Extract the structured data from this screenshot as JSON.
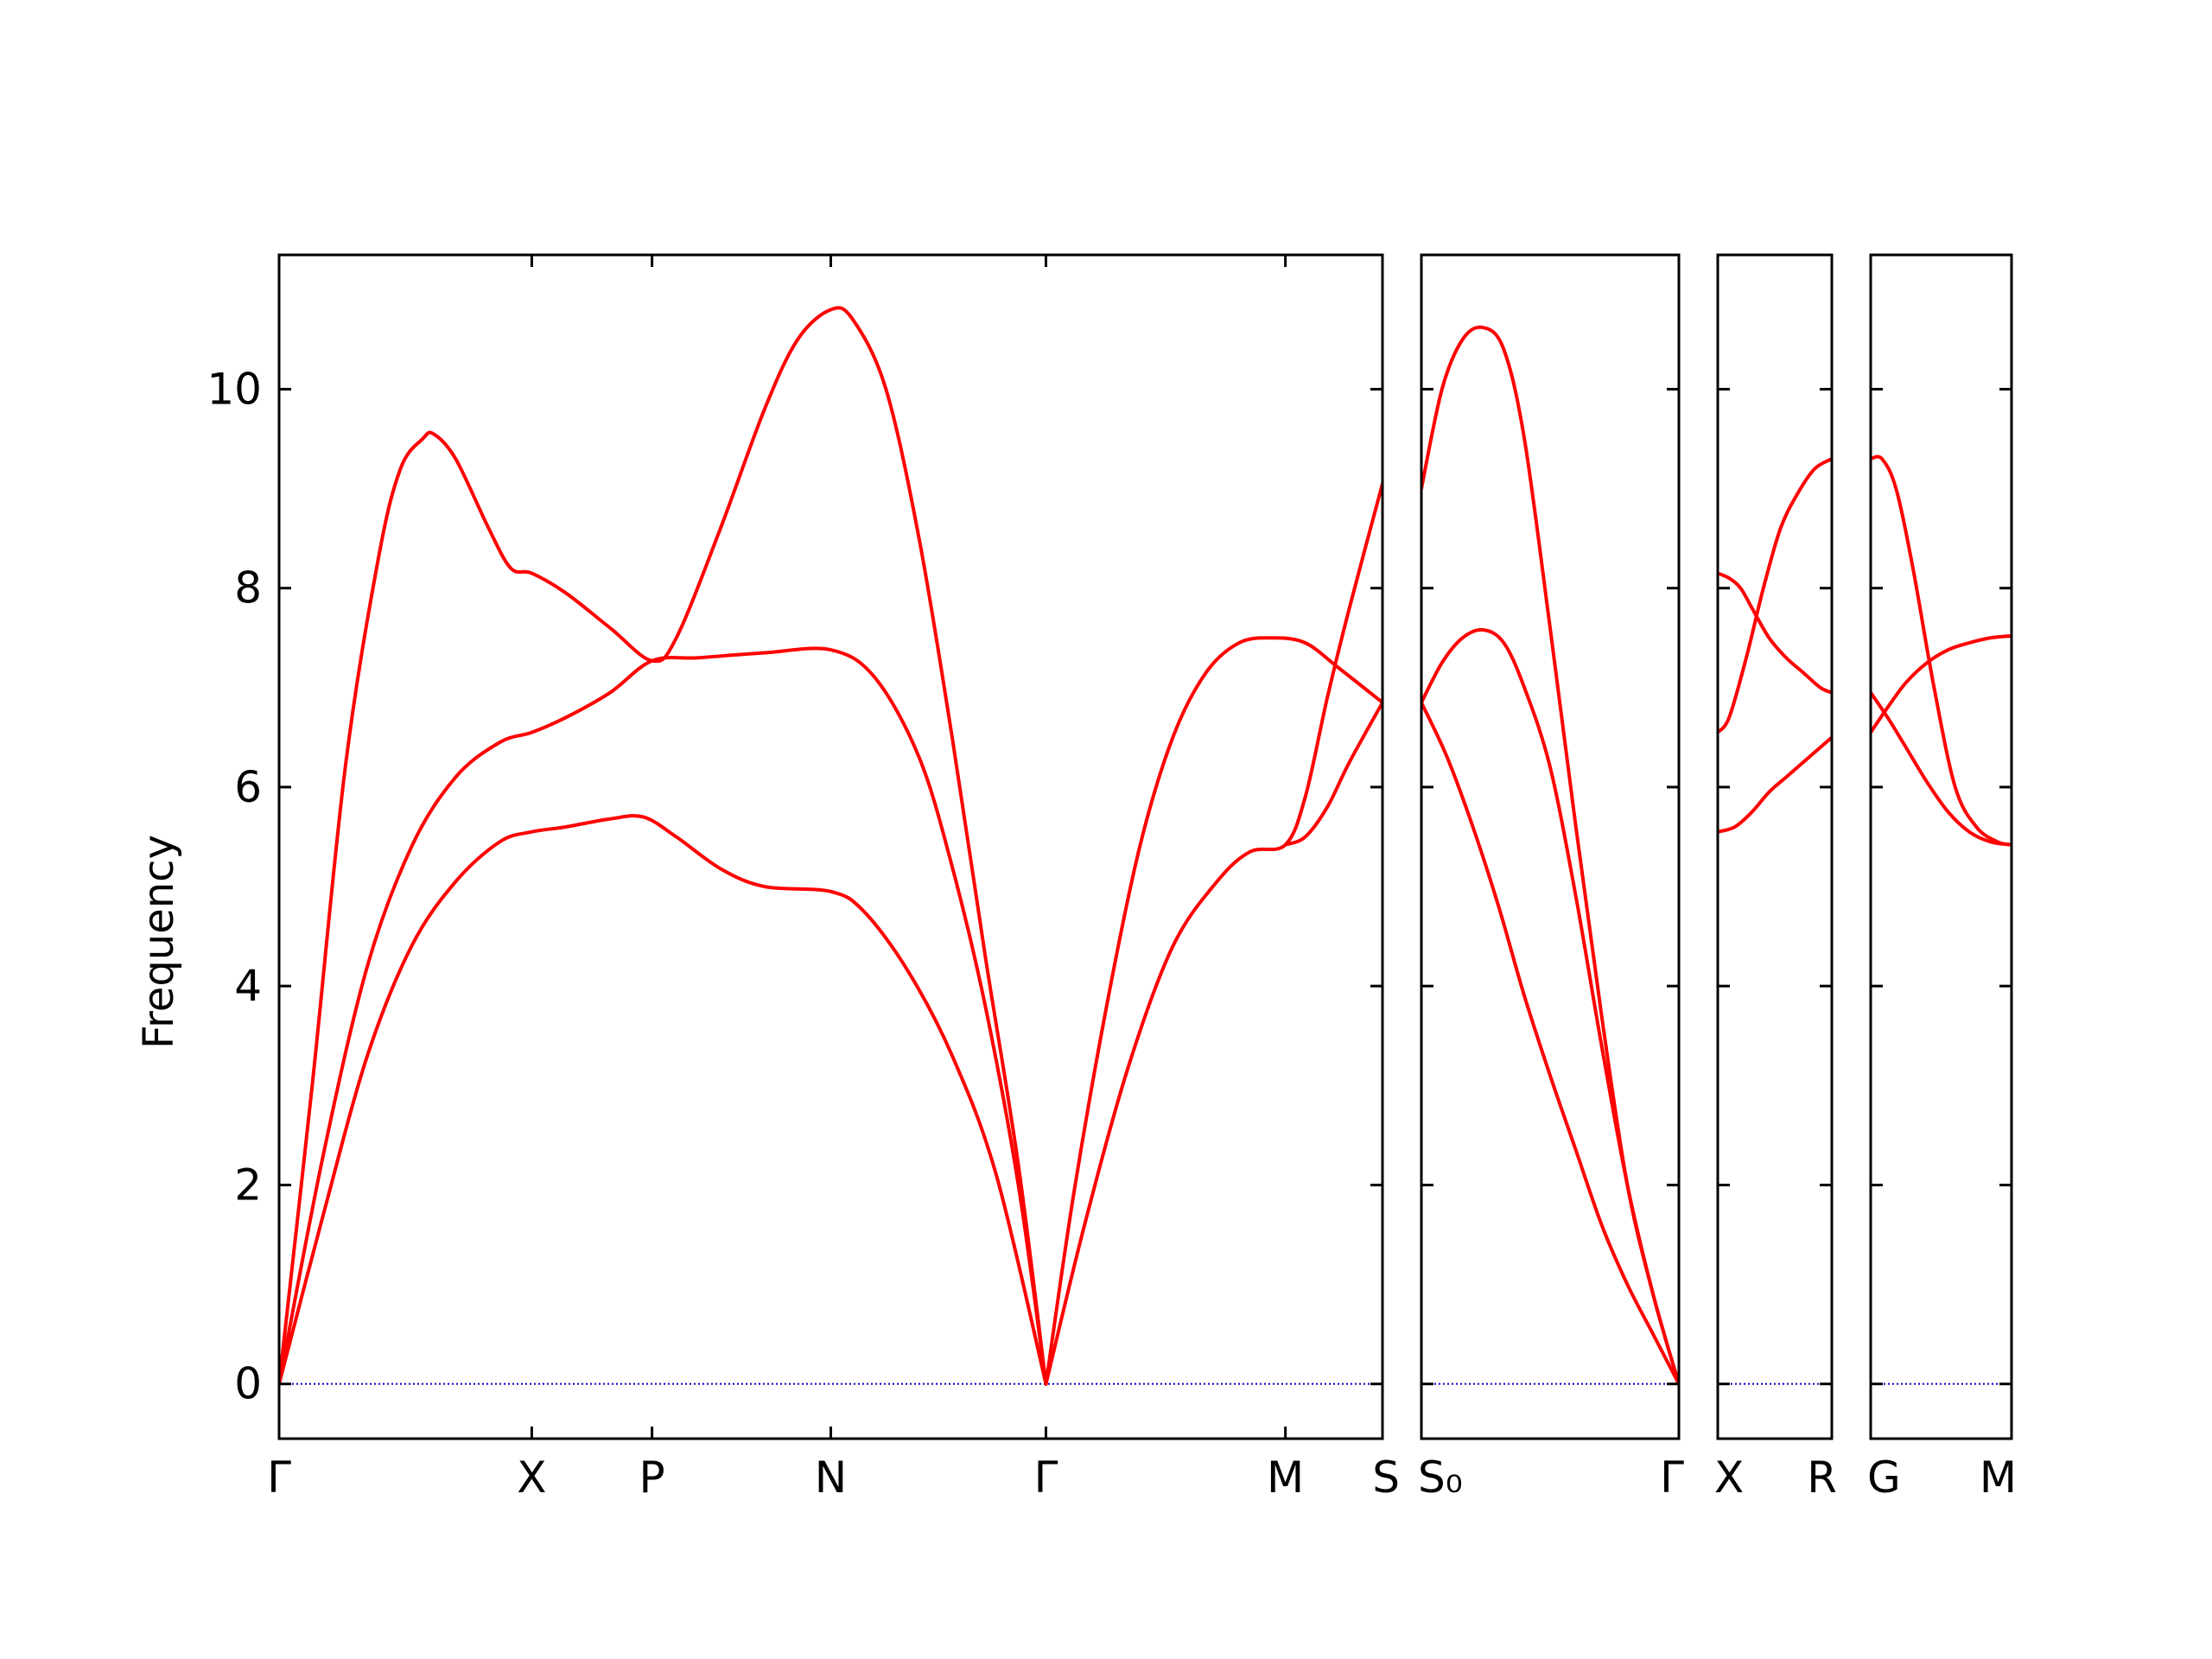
{
  "chart_data": {
    "type": "line",
    "ylabel": "Frequency",
    "ylim": [
      -0.55,
      11.35
    ],
    "yticks": [
      0,
      2,
      4,
      6,
      8,
      10
    ],
    "grid": false,
    "line_color": "#ff0000",
    "zero_line_color": "#0000cc",
    "panels": [
      {
        "name": "panel-1",
        "xticks": [
          {
            "label": "Γ",
            "pos": 0.0
          },
          {
            "label": "X",
            "pos": 0.229
          },
          {
            "label": "P",
            "pos": 0.338
          },
          {
            "label": "N",
            "pos": 0.5
          },
          {
            "label": "Γ",
            "pos": 0.695
          },
          {
            "label": "M",
            "pos": 0.912
          },
          {
            "label": "S",
            "pos": 1.0
          }
        ],
        "series": [
          {
            "points": [
              [
                0.0,
                0.0
              ],
              [
                0.03,
                3.0
              ],
              [
                0.06,
                6.2
              ],
              [
                0.09,
                8.3
              ],
              [
                0.11,
                9.2
              ],
              [
                0.13,
                9.5
              ],
              [
                0.14,
                9.55
              ],
              [
                0.16,
                9.3
              ],
              [
                0.19,
                8.6
              ],
              [
                0.21,
                8.2
              ],
              [
                0.229,
                8.15
              ],
              [
                0.26,
                7.95
              ],
              [
                0.3,
                7.6
              ],
              [
                0.338,
                7.27
              ],
              [
                0.36,
                7.5
              ],
              [
                0.4,
                8.6
              ],
              [
                0.44,
                9.8
              ],
              [
                0.47,
                10.5
              ],
              [
                0.5,
                10.8
              ],
              [
                0.52,
                10.7
              ],
              [
                0.55,
                10.0
              ],
              [
                0.58,
                8.5
              ],
              [
                0.61,
                6.5
              ],
              [
                0.64,
                4.3
              ],
              [
                0.67,
                2.2
              ],
              [
                0.695,
                0.0
              ]
            ]
          },
          {
            "points": [
              [
                0.0,
                0.0
              ],
              [
                0.04,
                2.3
              ],
              [
                0.08,
                4.2
              ],
              [
                0.12,
                5.4
              ],
              [
                0.16,
                6.1
              ],
              [
                0.2,
                6.45
              ],
              [
                0.229,
                6.55
              ],
              [
                0.26,
                6.7
              ],
              [
                0.3,
                6.95
              ],
              [
                0.338,
                7.27
              ],
              [
                0.38,
                7.3
              ],
              [
                0.44,
                7.35
              ],
              [
                0.5,
                7.38
              ],
              [
                0.54,
                7.1
              ],
              [
                0.58,
                6.3
              ],
              [
                0.61,
                5.2
              ],
              [
                0.64,
                3.8
              ],
              [
                0.67,
                2.0
              ],
              [
                0.695,
                0.0
              ]
            ]
          },
          {
            "points": [
              [
                0.0,
                0.0
              ],
              [
                0.04,
                1.7
              ],
              [
                0.08,
                3.3
              ],
              [
                0.12,
                4.4
              ],
              [
                0.16,
                5.05
              ],
              [
                0.2,
                5.45
              ],
              [
                0.229,
                5.55
              ],
              [
                0.26,
                5.6
              ],
              [
                0.3,
                5.68
              ],
              [
                0.33,
                5.7
              ],
              [
                0.36,
                5.5
              ],
              [
                0.4,
                5.18
              ],
              [
                0.44,
                5.0
              ],
              [
                0.5,
                4.95
              ],
              [
                0.53,
                4.75
              ],
              [
                0.57,
                4.15
              ],
              [
                0.61,
                3.3
              ],
              [
                0.65,
                2.1
              ],
              [
                0.695,
                0.0
              ]
            ]
          },
          {
            "points": [
              [
                0.695,
                0.0
              ],
              [
                0.72,
                1.9
              ],
              [
                0.75,
                3.8
              ],
              [
                0.78,
                5.4
              ],
              [
                0.81,
                6.5
              ],
              [
                0.84,
                7.15
              ],
              [
                0.87,
                7.45
              ],
              [
                0.9,
                7.5
              ],
              [
                0.93,
                7.45
              ],
              [
                0.96,
                7.2
              ],
              [
                1.0,
                6.85
              ]
            ]
          },
          {
            "points": [
              [
                0.695,
                0.0
              ],
              [
                0.73,
                1.6
              ],
              [
                0.77,
                3.2
              ],
              [
                0.81,
                4.4
              ],
              [
                0.85,
                5.05
              ],
              [
                0.88,
                5.35
              ],
              [
                0.912,
                5.42
              ],
              [
                0.93,
                5.9
              ],
              [
                0.95,
                6.9
              ],
              [
                0.97,
                7.8
              ],
              [
                1.0,
                9.05
              ]
            ]
          },
          {
            "points": [
              [
                0.912,
                5.42
              ],
              [
                0.93,
                5.5
              ],
              [
                0.95,
                5.8
              ],
              [
                0.97,
                6.25
              ],
              [
                1.0,
                6.85
              ]
            ]
          }
        ]
      },
      {
        "name": "panel-2",
        "xticks": [
          {
            "label": "S₀",
            "pos": 0.0
          },
          {
            "label": "Γ",
            "pos": 1.0
          }
        ],
        "series": [
          {
            "points": [
              [
                0.0,
                9.0
              ],
              [
                0.08,
                10.0
              ],
              [
                0.16,
                10.5
              ],
              [
                0.24,
                10.62
              ],
              [
                0.32,
                10.4
              ],
              [
                0.4,
                9.5
              ],
              [
                0.5,
                7.6
              ],
              [
                0.6,
                5.6
              ],
              [
                0.7,
                3.7
              ],
              [
                0.8,
                2.0
              ],
              [
                0.9,
                0.9
              ],
              [
                1.0,
                0.0
              ]
            ]
          },
          {
            "points": [
              [
                0.0,
                6.85
              ],
              [
                0.08,
                7.25
              ],
              [
                0.16,
                7.5
              ],
              [
                0.24,
                7.58
              ],
              [
                0.32,
                7.45
              ],
              [
                0.4,
                7.0
              ],
              [
                0.5,
                6.2
              ],
              [
                0.6,
                4.9
              ],
              [
                0.7,
                3.4
              ],
              [
                0.8,
                2.0
              ],
              [
                0.9,
                0.9
              ],
              [
                1.0,
                0.0
              ]
            ]
          },
          {
            "points": [
              [
                0.0,
                6.85
              ],
              [
                0.1,
                6.3
              ],
              [
                0.2,
                5.6
              ],
              [
                0.3,
                4.8
              ],
              [
                0.4,
                3.9
              ],
              [
                0.5,
                3.1
              ],
              [
                0.6,
                2.35
              ],
              [
                0.7,
                1.6
              ],
              [
                0.8,
                1.0
              ],
              [
                0.9,
                0.5
              ],
              [
                1.0,
                0.0
              ]
            ]
          }
        ]
      },
      {
        "name": "panel-3",
        "xticks": [
          {
            "label": "X",
            "pos": 0.0
          },
          {
            "label": "R",
            "pos": 1.0
          }
        ],
        "series": [
          {
            "points": [
              [
                0.0,
                8.15
              ],
              [
                0.1,
                8.1
              ],
              [
                0.2,
                8.0
              ],
              [
                0.3,
                7.8
              ],
              [
                0.45,
                7.5
              ],
              [
                0.6,
                7.3
              ],
              [
                0.75,
                7.15
              ],
              [
                0.9,
                7.0
              ],
              [
                1.0,
                6.95
              ]
            ]
          },
          {
            "points": [
              [
                0.0,
                6.55
              ],
              [
                0.1,
                6.7
              ],
              [
                0.25,
                7.3
              ],
              [
                0.4,
                8.0
              ],
              [
                0.55,
                8.6
              ],
              [
                0.7,
                8.95
              ],
              [
                0.85,
                9.2
              ],
              [
                1.0,
                9.3
              ]
            ]
          },
          {
            "points": [
              [
                0.0,
                5.55
              ],
              [
                0.15,
                5.6
              ],
              [
                0.3,
                5.75
              ],
              [
                0.45,
                5.95
              ],
              [
                0.6,
                6.1
              ],
              [
                0.75,
                6.25
              ],
              [
                0.9,
                6.4
              ],
              [
                1.0,
                6.5
              ]
            ]
          }
        ]
      },
      {
        "name": "panel-4",
        "xticks": [
          {
            "label": "G",
            "pos": 0.0
          },
          {
            "label": "M",
            "pos": 1.0
          }
        ],
        "series": [
          {
            "points": [
              [
                0.0,
                9.3
              ],
              [
                0.08,
                9.3
              ],
              [
                0.18,
                9.0
              ],
              [
                0.3,
                8.2
              ],
              [
                0.45,
                7.0
              ],
              [
                0.6,
                6.0
              ],
              [
                0.75,
                5.6
              ],
              [
                0.9,
                5.45
              ],
              [
                1.0,
                5.42
              ]
            ]
          },
          {
            "points": [
              [
                0.0,
                6.55
              ],
              [
                0.12,
                6.8
              ],
              [
                0.25,
                7.05
              ],
              [
                0.4,
                7.25
              ],
              [
                0.55,
                7.38
              ],
              [
                0.7,
                7.45
              ],
              [
                0.85,
                7.5
              ],
              [
                1.0,
                7.52
              ]
            ]
          },
          {
            "points": [
              [
                0.0,
                6.95
              ],
              [
                0.12,
                6.7
              ],
              [
                0.25,
                6.4
              ],
              [
                0.4,
                6.05
              ],
              [
                0.55,
                5.75
              ],
              [
                0.7,
                5.55
              ],
              [
                0.85,
                5.45
              ],
              [
                1.0,
                5.42
              ]
            ]
          }
        ]
      }
    ]
  }
}
